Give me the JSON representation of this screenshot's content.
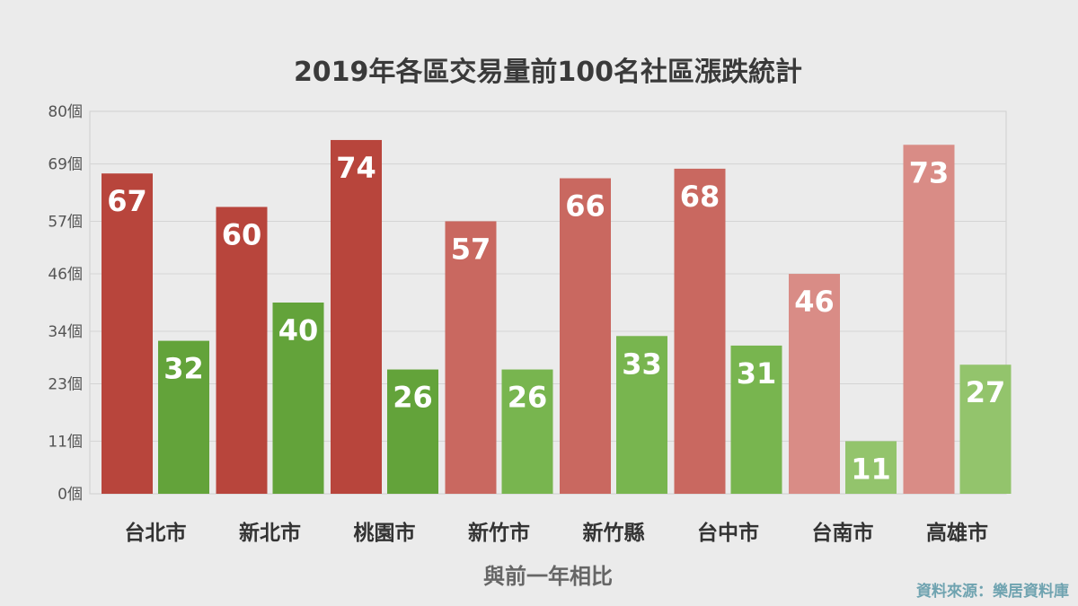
{
  "chart_data": {
    "type": "bar",
    "title": "2019年各區交易量前100名社區漲跌統計",
    "xlabel": "與前一年相比",
    "ylabel": "",
    "ylim": [
      0,
      80
    ],
    "y_ticks": [
      0,
      11,
      23,
      34,
      46,
      57,
      69,
      80
    ],
    "y_tick_labels": [
      "0個",
      "11個",
      "23個",
      "34個",
      "46個",
      "57個",
      "69個",
      "80個"
    ],
    "grid": true,
    "categories": [
      "台北市",
      "新北市",
      "桃園市",
      "新竹市",
      "新竹縣",
      "台中市",
      "台南市",
      "高雄市"
    ],
    "series": [
      {
        "values": [
          67,
          60,
          74,
          57,
          66,
          68,
          46,
          73
        ],
        "colors": [
          "#b8453c",
          "#b8453c",
          "#b8453c",
          "#c96860",
          "#c96860",
          "#c96860",
          "#d98c86",
          "#d98c86"
        ]
      },
      {
        "values": [
          32,
          40,
          26,
          26,
          33,
          31,
          11,
          27
        ],
        "colors": [
          "#63a33a",
          "#63a33a",
          "#63a33a",
          "#78b54f",
          "#78b54f",
          "#78b54f",
          "#93c46c",
          "#93c46c"
        ]
      }
    ],
    "source": "資料來源：樂居資料庫"
  }
}
